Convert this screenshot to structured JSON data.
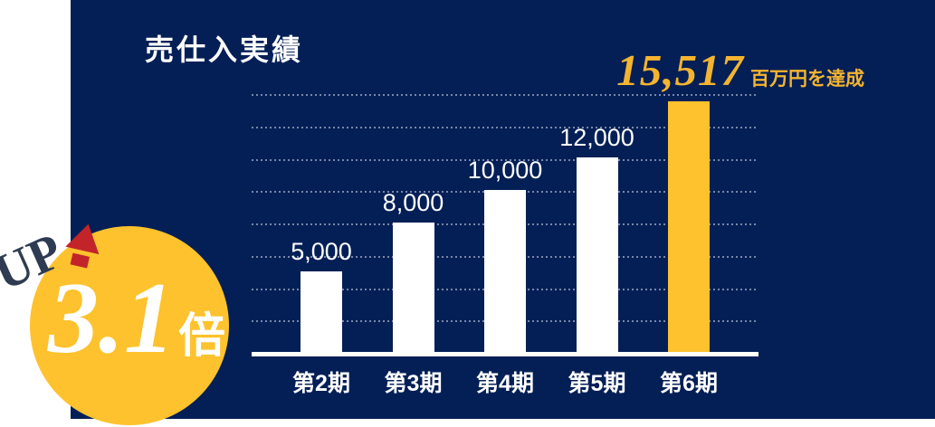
{
  "panel": {
    "title": "売仕入実績"
  },
  "headline": {
    "value": "15,517",
    "suffix": "百万円を達成"
  },
  "badge": {
    "up_text": "UP",
    "multiplier": "3.1",
    "unit": "倍"
  },
  "colors": {
    "panel_navy": "#041F56",
    "accent_gold": "#FDC22D",
    "headline_gold": "#F5B42F",
    "bar_white": "#FFFFFF",
    "arrow_red": "#C3242A",
    "up_text_color": "#2E3B52",
    "gridline_dots": "rgba(236,239,246,0.5)"
  },
  "chart_data": {
    "type": "bar",
    "title": "売仕入実績",
    "categories": [
      "第2期",
      "第3期",
      "第4期",
      "第5期",
      "第6期"
    ],
    "values": [
      5000,
      8000,
      10000,
      12000,
      15517
    ],
    "value_labels": [
      "5,000",
      "8,000",
      "10,000",
      "12,000",
      "15,517"
    ],
    "highlight_index": 4,
    "bar_colors": {
      "default": "#FFFFFF",
      "highlight": "#FDC22D"
    },
    "xlabel": "",
    "ylabel": "",
    "ylim": [
      0,
      16000
    ],
    "gridline_step": 2000,
    "grid": "dotted-horizontal",
    "legend": "none",
    "annotation": "15,517百万円を達成 (3.1倍 UP)"
  }
}
